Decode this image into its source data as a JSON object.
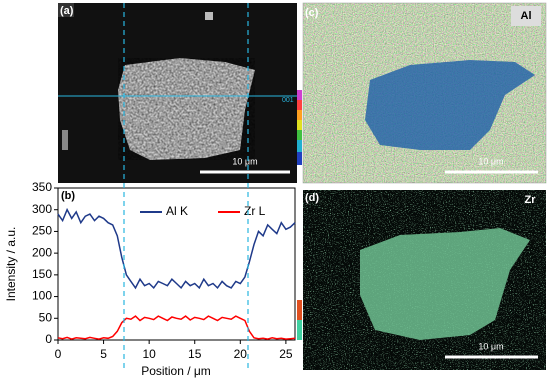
{
  "chart_data": {
    "type": "line",
    "title": "(b)",
    "x_label": "Position / μm",
    "y_label": "Intensity / a.u.",
    "x": [
      0,
      0.5,
      1,
      1.5,
      2,
      2.5,
      3,
      3.5,
      4,
      4.5,
      5,
      5.5,
      6,
      6.5,
      7,
      7.5,
      8,
      8.5,
      9,
      9.5,
      10,
      10.5,
      11,
      11.5,
      12,
      12.5,
      13,
      13.5,
      14,
      14.5,
      15,
      15.5,
      16,
      16.5,
      17,
      17.5,
      18,
      18.5,
      19,
      19.5,
      20,
      20.5,
      21,
      21.5,
      22,
      22.5,
      23,
      23.5,
      24,
      24.5,
      25,
      25.5,
      26
    ],
    "series": [
      {
        "name": "Al K",
        "color": "#1f3a8a",
        "values": [
          290,
          275,
          300,
          280,
          295,
          270,
          285,
          290,
          275,
          285,
          280,
          270,
          265,
          240,
          190,
          150,
          135,
          120,
          140,
          125,
          130,
          120,
          135,
          130,
          125,
          140,
          130,
          120,
          135,
          125,
          130,
          120,
          140,
          125,
          130,
          120,
          135,
          125,
          120,
          135,
          130,
          145,
          180,
          220,
          250,
          240,
          265,
          255,
          245,
          270,
          255,
          260,
          270
        ]
      },
      {
        "name": "Zr L",
        "color": "#ff0000",
        "values": [
          5,
          3,
          6,
          2,
          5,
          4,
          3,
          6,
          4,
          2,
          5,
          4,
          8,
          20,
          40,
          50,
          48,
          55,
          45,
          52,
          50,
          47,
          55,
          50,
          45,
          53,
          50,
          48,
          55,
          46,
          52,
          50,
          47,
          55,
          50,
          45,
          52,
          50,
          48,
          55,
          50,
          45,
          20,
          5,
          3,
          4,
          2,
          5,
          3,
          4,
          2,
          3,
          4
        ]
      }
    ],
    "xlim": [
      0,
      26
    ],
    "xticks": [
      0,
      5,
      10,
      15,
      20,
      25
    ],
    "ylim": [
      0,
      350
    ],
    "yticks": [
      0,
      50,
      100,
      150,
      200,
      250,
      300,
      350
    ],
    "legend": "top"
  },
  "panels": {
    "a": {
      "label": "(a)",
      "scale": "10 μm",
      "line_label": "001"
    },
    "c": {
      "label": "(c)",
      "element": "Al",
      "scale": "10 μm"
    },
    "d": {
      "label": "(d)",
      "element": "Zr",
      "scale": "10 μm"
    }
  }
}
